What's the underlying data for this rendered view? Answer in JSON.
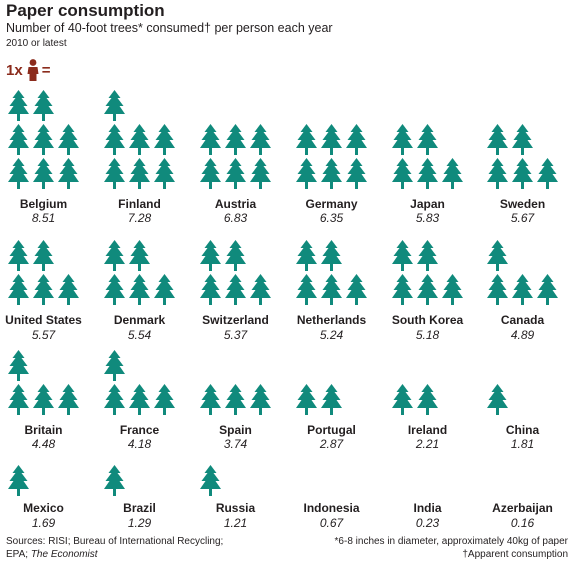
{
  "header": {
    "title": "Paper consumption",
    "subtitle": "Number of 40-foot trees* consumed† per person each year",
    "note": "2010 or latest"
  },
  "key": {
    "prefix": "1x",
    "suffix": "=",
    "icon": "person-icon"
  },
  "colors": {
    "tree": "#108a7c",
    "person": "#8b2b1c",
    "text": "#231f20"
  },
  "chart_data": {
    "type": "pictogram",
    "title": "Paper consumption",
    "subtitle": "Number of 40-foot trees* consumed† per person each year",
    "unit": "trees per person per year",
    "categories": [
      "Belgium",
      "Finland",
      "Austria",
      "Germany",
      "Japan",
      "Sweden",
      "United States",
      "Denmark",
      "Switzerland",
      "Netherlands",
      "South Korea",
      "Canada",
      "Britain",
      "France",
      "Spain",
      "Portugal",
      "Ireland",
      "China",
      "Mexico",
      "Brazil",
      "Russia",
      "Indonesia",
      "India",
      "Azerbaijan"
    ],
    "values": [
      8.51,
      7.28,
      6.83,
      6.35,
      5.83,
      5.67,
      5.57,
      5.54,
      5.37,
      5.24,
      5.18,
      4.89,
      4.48,
      4.18,
      3.74,
      2.87,
      2.21,
      1.81,
      1.69,
      1.29,
      1.21,
      0.67,
      0.23,
      0.16
    ],
    "value_labels": [
      "8.51",
      "7.28",
      "6.83",
      "6.35",
      "5.83",
      "5.67",
      "5.57",
      "5.54",
      "5.37",
      "5.24",
      "5.18",
      "4.89",
      "4.48",
      "4.18",
      "3.74",
      "2.87",
      "2.21",
      "1.81",
      "1.69",
      "1.29",
      "1.21",
      "0.67",
      "0.23",
      "0.16"
    ]
  },
  "footer": {
    "source_line1": "Sources: RISI; Bureau of International Recycling;",
    "source_line2_prefix": "EPA; ",
    "source_line2_italic": "The Economist",
    "footnote1": "*6-8 inches in diameter, approximately 40kg of paper",
    "footnote2": "†Apparent consumption"
  }
}
